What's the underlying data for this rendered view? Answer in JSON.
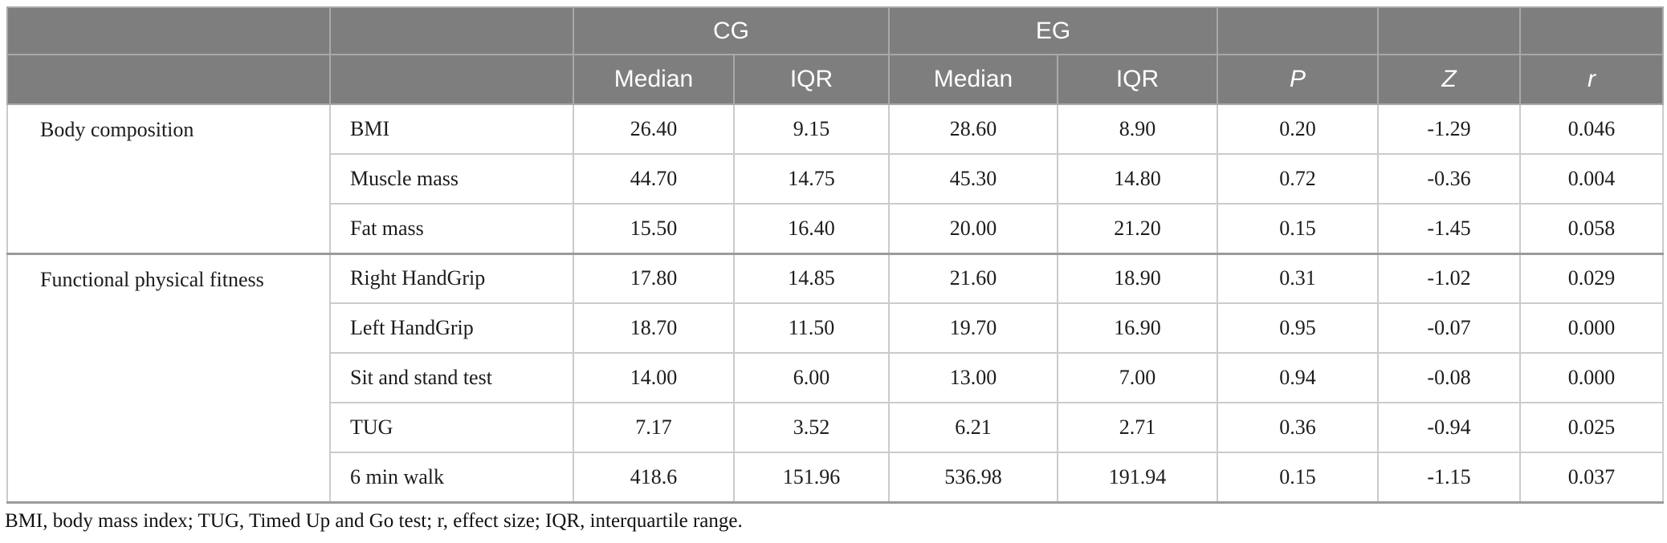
{
  "table": {
    "col_groups": [
      {
        "label": "CG"
      },
      {
        "label": "EG"
      }
    ],
    "sub_headers": [
      "Median",
      "IQR",
      "Median",
      "IQR",
      "P",
      "Z",
      "r"
    ],
    "groups": [
      {
        "category": "Body composition",
        "rows": [
          {
            "measure": "BMI",
            "values": [
              "26.40",
              "9.15",
              "28.60",
              "8.90",
              "0.20",
              "-1.29",
              "0.046"
            ]
          },
          {
            "measure": "Muscle mass",
            "values": [
              "44.70",
              "14.75",
              "45.30",
              "14.80",
              "0.72",
              "-0.36",
              "0.004"
            ]
          },
          {
            "measure": "Fat mass",
            "values": [
              "15.50",
              "16.40",
              "20.00",
              "21.20",
              "0.15",
              "-1.45",
              "0.058"
            ]
          }
        ]
      },
      {
        "category": "Functional physical fitness",
        "rows": [
          {
            "measure": "Right HandGrip",
            "values": [
              "17.80",
              "14.85",
              "21.60",
              "18.90",
              "0.31",
              "-1.02",
              "0.029"
            ]
          },
          {
            "measure": "Left HandGrip",
            "values": [
              "18.70",
              "11.50",
              "19.70",
              "16.90",
              "0.95",
              "-0.07",
              "0.000"
            ]
          },
          {
            "measure": "Sit and stand test",
            "values": [
              "14.00",
              "6.00",
              "13.00",
              "7.00",
              "0.94",
              "-0.08",
              "0.000"
            ]
          },
          {
            "measure": "TUG",
            "values": [
              "7.17",
              "3.52",
              "6.21",
              "2.71",
              "0.36",
              "-0.94",
              "0.025"
            ]
          },
          {
            "measure": "6 min walk",
            "values": [
              "418.6",
              "151.96",
              "536.98",
              "191.94",
              "0.15",
              "-1.15",
              "0.037"
            ]
          }
        ]
      }
    ],
    "footnote": "BMI, body mass index; TUG, Timed Up and Go test; r, effect size; IQR, interquartile range."
  },
  "colors": {
    "header_bg": "#7e7e7e",
    "header_text": "#ffffff",
    "header_border": "#a9a9a9",
    "body_border": "#cbcbcb",
    "section_border": "#9b9b9b",
    "text": "#1c1c1c"
  }
}
